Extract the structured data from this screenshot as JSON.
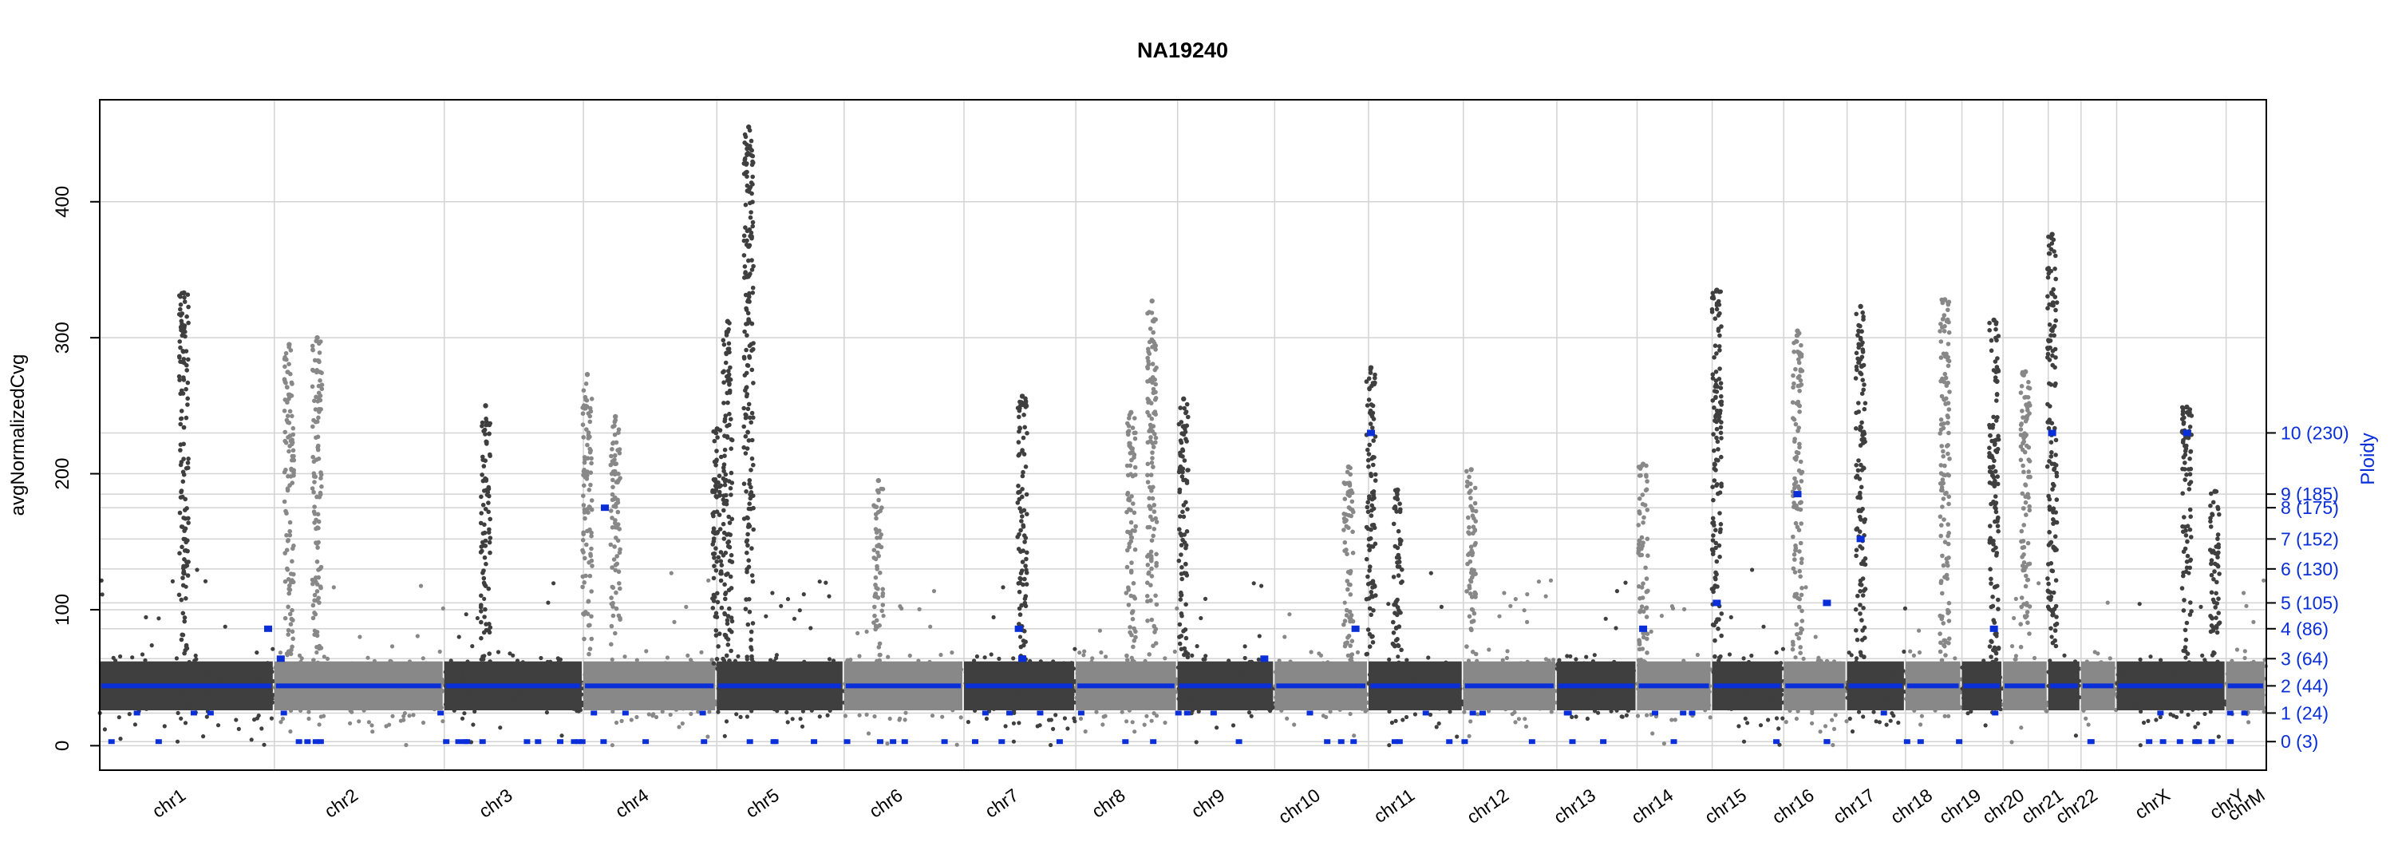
{
  "chart_data": {
    "type": "scatter",
    "title": "NA19240",
    "ylabel": "avgNormalizedCvg",
    "y2label": "Ploidy",
    "ylim": [
      -18,
      475
    ],
    "y_ticks": [
      "0",
      "100",
      "200",
      "300",
      "400"
    ],
    "grid": true,
    "baseline_coverage": 44,
    "colors": {
      "dark": "#3f3f3f",
      "light": "#888888",
      "segment": "#0a2fd8",
      "grid": "#d3d3d3",
      "axis": "#000000"
    },
    "chromosomes": [
      {
        "name": "chr1",
        "start": 0.0,
        "end": 248.9,
        "tone": "dark"
      },
      {
        "name": "chr2",
        "start": 248.9,
        "end": 491.1,
        "tone": "light"
      },
      {
        "name": "chr3",
        "start": 491.1,
        "end": 689.4,
        "tone": "dark"
      },
      {
        "name": "chr4",
        "start": 689.4,
        "end": 879.6,
        "tone": "light"
      },
      {
        "name": "chr5",
        "start": 879.6,
        "end": 1061.1,
        "tone": "dark"
      },
      {
        "name": "chr6",
        "start": 1061.1,
        "end": 1231.9,
        "tone": "light"
      },
      {
        "name": "chr7",
        "start": 1231.9,
        "end": 1391.3,
        "tone": "dark"
      },
      {
        "name": "chr8",
        "start": 1391.3,
        "end": 1536.4,
        "tone": "light"
      },
      {
        "name": "chr9",
        "start": 1536.4,
        "end": 1674.8,
        "tone": "dark"
      },
      {
        "name": "chr10",
        "start": 1674.8,
        "end": 1808.6,
        "tone": "light"
      },
      {
        "name": "chr11",
        "start": 1808.6,
        "end": 1943.7,
        "tone": "dark"
      },
      {
        "name": "chr12",
        "start": 1943.7,
        "end": 2077.0,
        "tone": "light"
      },
      {
        "name": "chr13",
        "start": 2077.0,
        "end": 2191.4,
        "tone": "dark"
      },
      {
        "name": "chr14",
        "start": 2191.4,
        "end": 2298.4,
        "tone": "light"
      },
      {
        "name": "chr15",
        "start": 2298.4,
        "end": 2400.4,
        "tone": "dark"
      },
      {
        "name": "chr16",
        "start": 2400.4,
        "end": 2490.7,
        "tone": "light"
      },
      {
        "name": "chr17",
        "start": 2490.7,
        "end": 2574.0,
        "tone": "dark"
      },
      {
        "name": "chr18",
        "start": 2574.0,
        "end": 2654.4,
        "tone": "light"
      },
      {
        "name": "chr19",
        "start": 2654.4,
        "end": 2713.0,
        "tone": "dark"
      },
      {
        "name": "chr20",
        "start": 2713.0,
        "end": 2777.5,
        "tone": "light"
      },
      {
        "name": "chr21",
        "start": 2777.5,
        "end": 2824.2,
        "tone": "dark"
      },
      {
        "name": "chr22",
        "start": 2824.2,
        "end": 2875.0,
        "tone": "light"
      },
      {
        "name": "chrX",
        "start": 2875.0,
        "end": 3031.0,
        "tone": "dark"
      },
      {
        "name": "chrY",
        "start": 3031.0,
        "end": 3088.2,
        "tone": "light"
      },
      {
        "name": "chrM",
        "start": 3088.2,
        "end": 3088.3,
        "tone": "dark"
      }
    ],
    "ploidy_levels": [
      {
        "label": "0 (3)",
        "cvg": 3
      },
      {
        "label": "1 (24)",
        "cvg": 24
      },
      {
        "label": "2 (44)",
        "cvg": 44
      },
      {
        "label": "3 (64)",
        "cvg": 64
      },
      {
        "label": "4 (86)",
        "cvg": 86
      },
      {
        "label": "5 (105)",
        "cvg": 105
      },
      {
        "label": "6 (130)",
        "cvg": 130
      },
      {
        "label": "7 (152)",
        "cvg": 152
      },
      {
        "label": "8 (175)",
        "cvg": 175
      },
      {
        "label": "9 (185)",
        "cvg": 185
      },
      {
        "label": "10 (230)",
        "cvg": 230
      }
    ],
    "coverage_peaks": [
      {
        "chr": "chr1",
        "pos": 120,
        "max": 333
      },
      {
        "chr": "chr2",
        "pos": 270,
        "max": 295
      },
      {
        "chr": "chr2",
        "pos": 310,
        "max": 300
      },
      {
        "chr": "chr3",
        "pos": 550,
        "max": 250
      },
      {
        "chr": "chr4",
        "pos": 695,
        "max": 273
      },
      {
        "chr": "chr4",
        "pos": 735,
        "max": 242
      },
      {
        "chr": "chr5",
        "pos": 880,
        "max": 233
      },
      {
        "chr": "chr5",
        "pos": 895,
        "max": 312
      },
      {
        "chr": "chr5",
        "pos": 925,
        "max": 455
      },
      {
        "chr": "chr6",
        "pos": 1110,
        "max": 195
      },
      {
        "chr": "chr7",
        "pos": 1315,
        "max": 257
      },
      {
        "chr": "chr8",
        "pos": 1470,
        "max": 245
      },
      {
        "chr": "chr8",
        "pos": 1500,
        "max": 327
      },
      {
        "chr": "chr9",
        "pos": 1545,
        "max": 255
      },
      {
        "chr": "chr10",
        "pos": 1780,
        "max": 205
      },
      {
        "chr": "chr11",
        "pos": 1812,
        "max": 278
      },
      {
        "chr": "chr11",
        "pos": 1850,
        "max": 188
      },
      {
        "chr": "chr12",
        "pos": 1955,
        "max": 203
      },
      {
        "chr": "chr14",
        "pos": 2200,
        "max": 207
      },
      {
        "chr": "chr15",
        "pos": 2305,
        "max": 335
      },
      {
        "chr": "chr16",
        "pos": 2420,
        "max": 305
      },
      {
        "chr": "chr17",
        "pos": 2510,
        "max": 323
      },
      {
        "chr": "chr18",
        "pos": 2630,
        "max": 328
      },
      {
        "chr": "chr19",
        "pos": 2700,
        "max": 313
      },
      {
        "chr": "chr20",
        "pos": 2745,
        "max": 275
      },
      {
        "chr": "chr21",
        "pos": 2783,
        "max": 376
      },
      {
        "chr": "chrX",
        "pos": 2975,
        "max": 249
      },
      {
        "chr": "chrX",
        "pos": 3015,
        "max": 187
      }
    ],
    "ploidy_segments_blue": [
      {
        "pos": 240,
        "cvg": 86
      },
      {
        "pos": 258,
        "cvg": 64
      },
      {
        "pos": 720,
        "cvg": 175
      },
      {
        "pos": 1310,
        "cvg": 86
      },
      {
        "pos": 1315,
        "cvg": 64
      },
      {
        "pos": 1660,
        "cvg": 64
      },
      {
        "pos": 1790,
        "cvg": 86
      },
      {
        "pos": 1812,
        "cvg": 230
      },
      {
        "pos": 2200,
        "cvg": 86
      },
      {
        "pos": 2305,
        "cvg": 105
      },
      {
        "pos": 2420,
        "cvg": 185
      },
      {
        "pos": 2462,
        "cvg": 105
      },
      {
        "pos": 2510,
        "cvg": 152
      },
      {
        "pos": 2700,
        "cvg": 86
      },
      {
        "pos": 2783,
        "cvg": 230
      },
      {
        "pos": 2975,
        "cvg": 230
      }
    ]
  }
}
